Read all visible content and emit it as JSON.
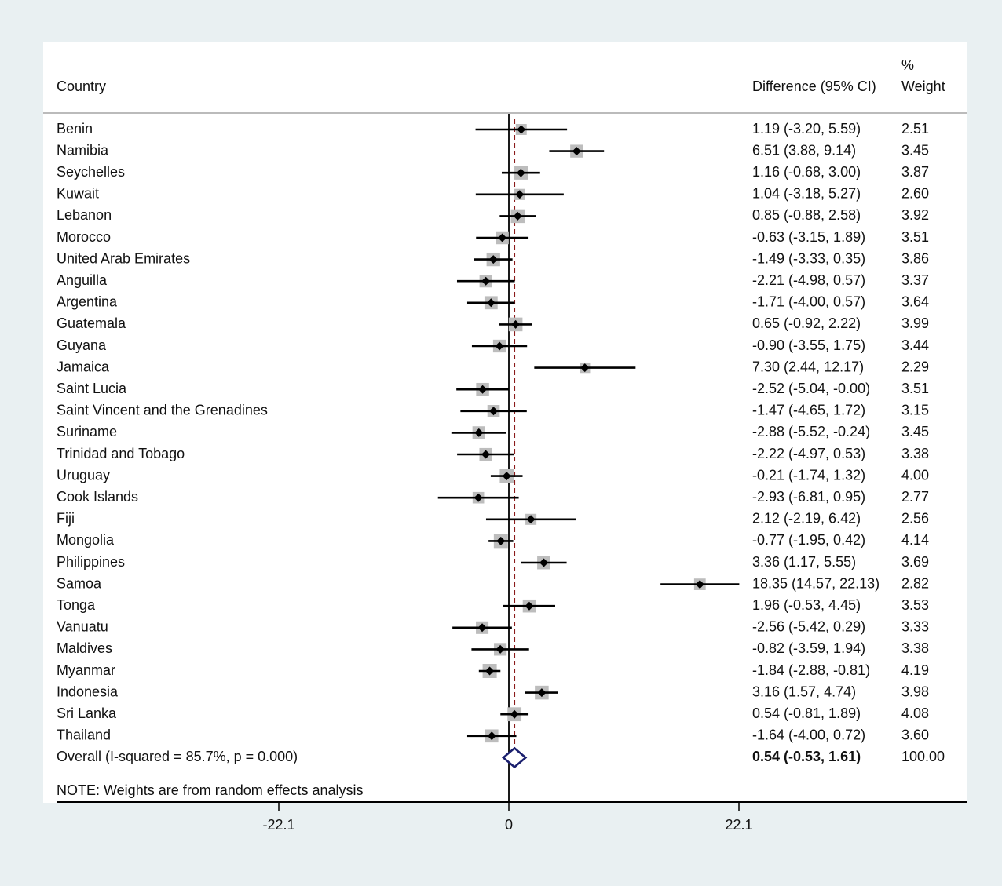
{
  "chart_data": {
    "type": "forest",
    "headers": {
      "country": "Country",
      "difference": "Difference (95% CI)",
      "weight_line1": "%",
      "weight_line2": "Weight"
    },
    "rows": [
      {
        "country": "Benin",
        "est": 1.19,
        "lo": -3.2,
        "hi": 5.59,
        "ci_label": "1.19 (-3.20, 5.59)",
        "weight": 2.51,
        "weight_label": "2.51"
      },
      {
        "country": "Namibia",
        "est": 6.51,
        "lo": 3.88,
        "hi": 9.14,
        "ci_label": "6.51 (3.88, 9.14)",
        "weight": 3.45,
        "weight_label": "3.45"
      },
      {
        "country": "Seychelles",
        "est": 1.16,
        "lo": -0.68,
        "hi": 3.0,
        "ci_label": "1.16 (-0.68, 3.00)",
        "weight": 3.87,
        "weight_label": "3.87"
      },
      {
        "country": "Kuwait",
        "est": 1.04,
        "lo": -3.18,
        "hi": 5.27,
        "ci_label": "1.04 (-3.18, 5.27)",
        "weight": 2.6,
        "weight_label": "2.60"
      },
      {
        "country": "Lebanon",
        "est": 0.85,
        "lo": -0.88,
        "hi": 2.58,
        "ci_label": "0.85 (-0.88, 2.58)",
        "weight": 3.92,
        "weight_label": "3.92"
      },
      {
        "country": "Morocco",
        "est": -0.63,
        "lo": -3.15,
        "hi": 1.89,
        "ci_label": "-0.63 (-3.15, 1.89)",
        "weight": 3.51,
        "weight_label": "3.51"
      },
      {
        "country": "United Arab Emirates",
        "est": -1.49,
        "lo": -3.33,
        "hi": 0.35,
        "ci_label": "-1.49 (-3.33, 0.35)",
        "weight": 3.86,
        "weight_label": "3.86"
      },
      {
        "country": "Anguilla",
        "est": -2.21,
        "lo": -4.98,
        "hi": 0.57,
        "ci_label": "-2.21 (-4.98, 0.57)",
        "weight": 3.37,
        "weight_label": "3.37"
      },
      {
        "country": "Argentina",
        "est": -1.71,
        "lo": -4.0,
        "hi": 0.57,
        "ci_label": "-1.71 (-4.00, 0.57)",
        "weight": 3.64,
        "weight_label": "3.64"
      },
      {
        "country": "Guatemala",
        "est": 0.65,
        "lo": -0.92,
        "hi": 2.22,
        "ci_label": "0.65 (-0.92, 2.22)",
        "weight": 3.99,
        "weight_label": "3.99"
      },
      {
        "country": "Guyana",
        "est": -0.9,
        "lo": -3.55,
        "hi": 1.75,
        "ci_label": "-0.90 (-3.55, 1.75)",
        "weight": 3.44,
        "weight_label": "3.44"
      },
      {
        "country": "Jamaica",
        "est": 7.3,
        "lo": 2.44,
        "hi": 12.17,
        "ci_label": "7.30 (2.44, 12.17)",
        "weight": 2.29,
        "weight_label": "2.29"
      },
      {
        "country": "Saint Lucia",
        "est": -2.52,
        "lo": -5.04,
        "hi": -0.0,
        "ci_label": "-2.52 (-5.04, -0.00)",
        "weight": 3.51,
        "weight_label": "3.51"
      },
      {
        "country": "Saint Vincent and the Grenadines",
        "est": -1.47,
        "lo": -4.65,
        "hi": 1.72,
        "ci_label": "-1.47 (-4.65, 1.72)",
        "weight": 3.15,
        "weight_label": "3.15"
      },
      {
        "country": "Suriname",
        "est": -2.88,
        "lo": -5.52,
        "hi": -0.24,
        "ci_label": "-2.88 (-5.52, -0.24)",
        "weight": 3.45,
        "weight_label": "3.45"
      },
      {
        "country": "Trinidad and Tobago",
        "est": -2.22,
        "lo": -4.97,
        "hi": 0.53,
        "ci_label": "-2.22 (-4.97, 0.53)",
        "weight": 3.38,
        "weight_label": "3.38"
      },
      {
        "country": "Uruguay",
        "est": -0.21,
        "lo": -1.74,
        "hi": 1.32,
        "ci_label": "-0.21 (-1.74, 1.32)",
        "weight": 4.0,
        "weight_label": "4.00"
      },
      {
        "country": "Cook Islands",
        "est": -2.93,
        "lo": -6.81,
        "hi": 0.95,
        "ci_label": "-2.93 (-6.81, 0.95)",
        "weight": 2.77,
        "weight_label": "2.77"
      },
      {
        "country": "Fiji",
        "est": 2.12,
        "lo": -2.19,
        "hi": 6.42,
        "ci_label": "2.12 (-2.19, 6.42)",
        "weight": 2.56,
        "weight_label": "2.56"
      },
      {
        "country": "Mongolia",
        "est": -0.77,
        "lo": -1.95,
        "hi": 0.42,
        "ci_label": "-0.77 (-1.95, 0.42)",
        "weight": 4.14,
        "weight_label": "4.14"
      },
      {
        "country": "Philippines",
        "est": 3.36,
        "lo": 1.17,
        "hi": 5.55,
        "ci_label": "3.36 (1.17, 5.55)",
        "weight": 3.69,
        "weight_label": "3.69"
      },
      {
        "country": "Samoa",
        "est": 18.35,
        "lo": 14.57,
        "hi": 22.13,
        "ci_label": "18.35 (14.57, 22.13)",
        "weight": 2.82,
        "weight_label": "2.82"
      },
      {
        "country": "Tonga",
        "est": 1.96,
        "lo": -0.53,
        "hi": 4.45,
        "ci_label": "1.96 (-0.53, 4.45)",
        "weight": 3.53,
        "weight_label": "3.53"
      },
      {
        "country": "Vanuatu",
        "est": -2.56,
        "lo": -5.42,
        "hi": 0.29,
        "ci_label": "-2.56 (-5.42, 0.29)",
        "weight": 3.33,
        "weight_label": "3.33"
      },
      {
        "country": "Maldives",
        "est": -0.82,
        "lo": -3.59,
        "hi": 1.94,
        "ci_label": "-0.82 (-3.59, 1.94)",
        "weight": 3.38,
        "weight_label": "3.38"
      },
      {
        "country": "Myanmar",
        "est": -1.84,
        "lo": -2.88,
        "hi": -0.81,
        "ci_label": "-1.84 (-2.88, -0.81)",
        "weight": 4.19,
        "weight_label": "4.19"
      },
      {
        "country": "Indonesia",
        "est": 3.16,
        "lo": 1.57,
        "hi": 4.74,
        "ci_label": "3.16 (1.57, 4.74)",
        "weight": 3.98,
        "weight_label": "3.98"
      },
      {
        "country": "Sri Lanka",
        "est": 0.54,
        "lo": -0.81,
        "hi": 1.89,
        "ci_label": "0.54 (-0.81, 1.89)",
        "weight": 4.08,
        "weight_label": "4.08"
      },
      {
        "country": "Thailand",
        "est": -1.64,
        "lo": -4.0,
        "hi": 0.72,
        "ci_label": "-1.64 (-4.00, 0.72)",
        "weight": 3.6,
        "weight_label": "3.60"
      }
    ],
    "overall": {
      "label": "Overall  (I-squared = 85.7%, p = 0.000)",
      "est": 0.54,
      "lo": -0.53,
      "hi": 1.61,
      "ci_label": "0.54 (-0.53, 1.61)",
      "weight_label": "100.00"
    },
    "note": "NOTE: Weights are from random effects analysis",
    "x_axis": {
      "ticks": [
        -22.1,
        0,
        22.1
      ],
      "tick_labels": [
        "-22.1",
        "0",
        "22.1"
      ]
    },
    "reference_line": 0,
    "colors": {
      "background": "#e9f0f2",
      "plot_bg": "#ffffff",
      "weight_box": "#bdbdbd",
      "marker": "#000000",
      "overall_diamond": "#1a1f6e",
      "overall_line": "#8b1a1a"
    }
  }
}
